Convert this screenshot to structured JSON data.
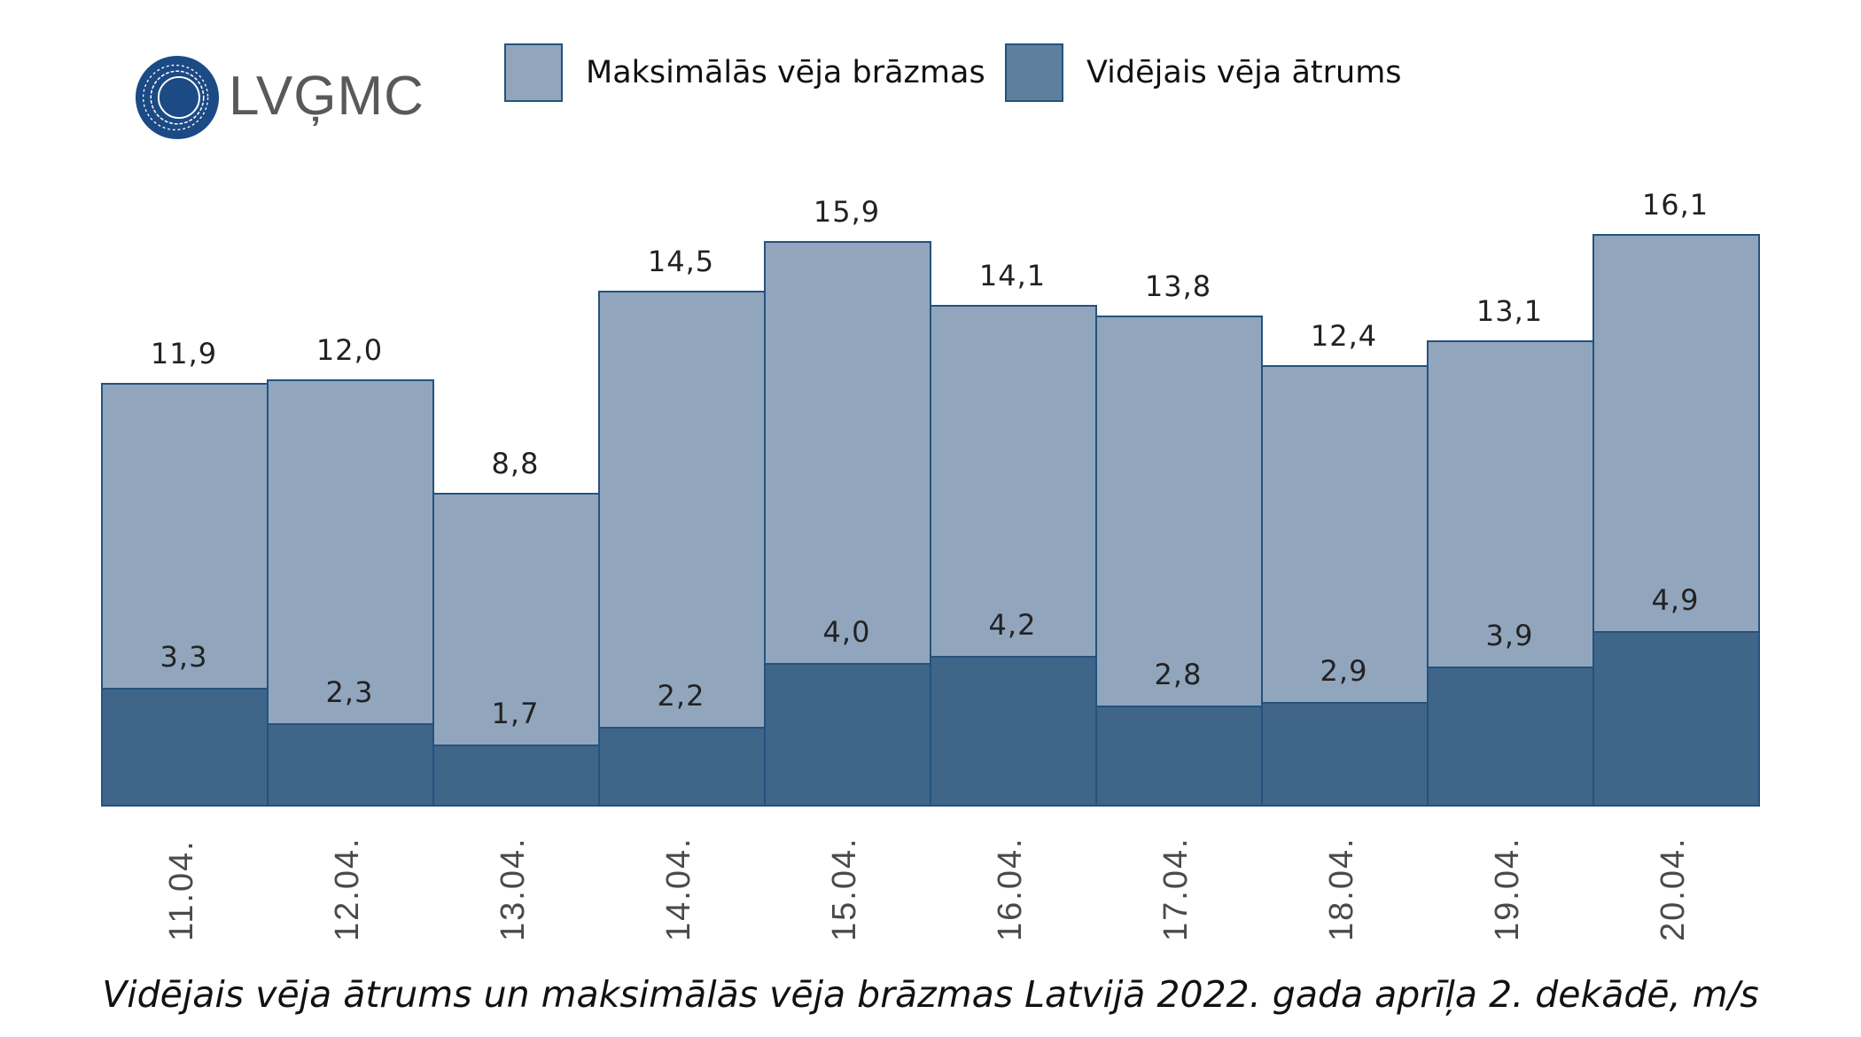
{
  "logo": {
    "text": "LVĢMC",
    "brand_color": "#1b4a85",
    "text_color": "#58595b"
  },
  "legend": [
    {
      "label": "Maksimālās vēja brāzmas",
      "color": "#91a6bd"
    },
    {
      "label": "Vidējais vēja ātrums",
      "color": "#5f7f9e"
    }
  ],
  "caption": "Vidējais vēja ātrums un maksimālās vēja brāzmas Latvijā 2022. gada aprīļa 2. dekādē, m/s",
  "chart_data": {
    "type": "bar",
    "title": "Vidējais vēja ātrums un maksimālās vēja brāzmas Latvijā 2022. gada aprīļa 2. dekādē, m/s",
    "xlabel": "",
    "ylabel": "m/s",
    "ylim": [
      0,
      17
    ],
    "grid": false,
    "legend_position": "top",
    "categories": [
      "11.04.",
      "12.04.",
      "13.04.",
      "14.04.",
      "15.04.",
      "16.04.",
      "17.04.",
      "18.04.",
      "19.04.",
      "20.04."
    ],
    "series": [
      {
        "name": "Maksimālās vēja brāzmas",
        "color": "#91a6bd",
        "values": [
          11.9,
          12.0,
          8.8,
          14.5,
          15.9,
          14.1,
          13.8,
          12.4,
          13.1,
          16.1
        ],
        "labels": [
          "11,9",
          "12,0",
          "8,8",
          "14,5",
          "15,9",
          "14,1",
          "13,8",
          "12,4",
          "13,1",
          "16,1"
        ]
      },
      {
        "name": "Vidējais vēja ātrums",
        "color": "#3f6589",
        "values": [
          3.3,
          2.3,
          1.7,
          2.2,
          4.0,
          4.2,
          2.8,
          2.9,
          3.9,
          4.9
        ],
        "labels": [
          "3,3",
          "2,3",
          "1,7",
          "2,2",
          "4,0",
          "4,2",
          "2,8",
          "2,9",
          "3,9",
          "4,9"
        ]
      }
    ]
  }
}
